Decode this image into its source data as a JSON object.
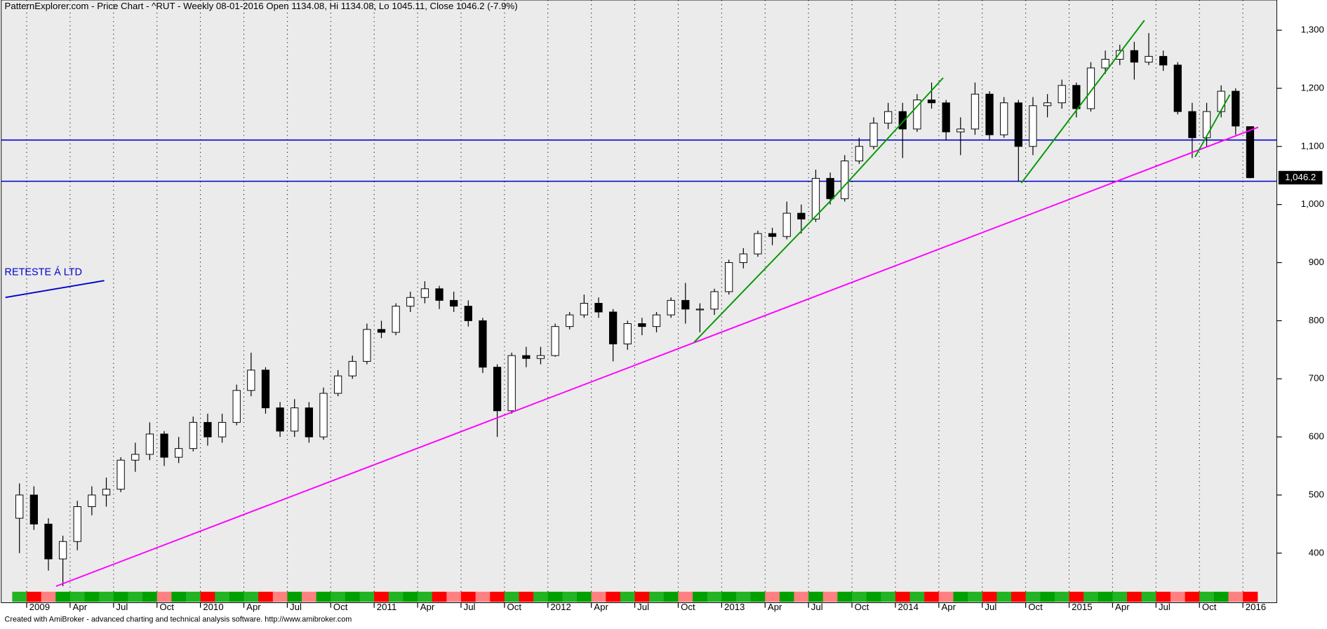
{
  "chart_data": {
    "type": "candlestick",
    "title": "PatternExplorer.com - Price Chart - ^RUT - Weekly 08-01-2016 Open 1134.08, Hi 1134.08, Lo 1045.11, Close 1046.2 (-7.9%)",
    "footer": "Created with AmiBroker - advanced charting and technical analysis software. http://www.amibroker.com",
    "annotation": "RETESTE Á LTD",
    "last_label": "1,046.2",
    "categories": [
      null,
      "2009",
      null,
      null,
      "Apr",
      null,
      null,
      "Jul",
      null,
      null,
      "Oct",
      null,
      null,
      "2010",
      null,
      null,
      "Apr",
      null,
      null,
      "Jul",
      null,
      null,
      "Oct",
      null,
      null,
      "2011",
      null,
      null,
      "Apr",
      null,
      null,
      "Jul",
      null,
      null,
      "Oct",
      null,
      null,
      "2012",
      null,
      null,
      "Apr",
      null,
      null,
      "Jul",
      null,
      null,
      "Oct",
      null,
      null,
      "2013",
      null,
      null,
      "Apr",
      null,
      null,
      "Jul",
      null,
      null,
      "Oct",
      null,
      null,
      "2014",
      null,
      null,
      "Apr",
      null,
      null,
      "Jul",
      null,
      null,
      "Oct",
      null,
      null,
      "2015",
      null,
      null,
      "Apr",
      null,
      null,
      "Jul",
      null,
      null,
      "Oct",
      null,
      null,
      "2016"
    ],
    "open": [
      460,
      500,
      450,
      390,
      420,
      480,
      500,
      510,
      560,
      570,
      605,
      565,
      580,
      625,
      600,
      625,
      680,
      715,
      650,
      610,
      650,
      600,
      675,
      705,
      730,
      785,
      780,
      825,
      840,
      855,
      835,
      825,
      800,
      720,
      645,
      740,
      735,
      740,
      790,
      810,
      830,
      815,
      760,
      795,
      790,
      810,
      835,
      820,
      820,
      850,
      900,
      915,
      950,
      945,
      985,
      975,
      1045,
      1010,
      1075,
      1100,
      1140,
      1160,
      1130,
      1180,
      1175,
      1125,
      1130,
      1190,
      1120,
      1175,
      1100,
      1170,
      1175,
      1205,
      1165,
      1235,
      1250,
      1265,
      1245,
      1255,
      1240,
      1160,
      1115,
      1160,
      1195,
      1134.08
    ],
    "high": [
      520,
      515,
      460,
      430,
      490,
      515,
      530,
      565,
      590,
      625,
      610,
      600,
      635,
      640,
      640,
      690,
      745,
      720,
      660,
      665,
      660,
      685,
      715,
      740,
      795,
      800,
      830,
      850,
      868,
      860,
      850,
      835,
      805,
      725,
      745,
      755,
      755,
      795,
      815,
      845,
      840,
      820,
      800,
      805,
      815,
      840,
      865,
      830,
      855,
      905,
      925,
      955,
      960,
      1005,
      1000,
      1060,
      1055,
      1085,
      1115,
      1150,
      1175,
      1175,
      1190,
      1210,
      1180,
      1150,
      1210,
      1195,
      1185,
      1180,
      1185,
      1190,
      1215,
      1210,
      1245,
      1265,
      1275,
      1280,
      1295,
      1265,
      1245,
      1175,
      1175,
      1205,
      1200,
      1134.08
    ],
    "low": [
      400,
      440,
      370,
      343,
      405,
      465,
      480,
      505,
      540,
      560,
      550,
      555,
      575,
      585,
      590,
      620,
      670,
      640,
      600,
      600,
      590,
      595,
      670,
      700,
      725,
      770,
      775,
      815,
      830,
      820,
      815,
      790,
      710,
      600,
      640,
      720,
      725,
      738,
      785,
      805,
      805,
      730,
      750,
      775,
      780,
      805,
      795,
      780,
      810,
      845,
      890,
      910,
      930,
      940,
      950,
      970,
      1000,
      1005,
      1070,
      1095,
      1130,
      1080,
      1125,
      1165,
      1110,
      1085,
      1120,
      1110,
      1115,
      1040,
      1085,
      1150,
      1165,
      1150,
      1160,
      1225,
      1240,
      1215,
      1240,
      1230,
      1155,
      1080,
      1100,
      1150,
      1120,
      1045.11
    ],
    "close": [
      500,
      450,
      390,
      420,
      480,
      500,
      510,
      560,
      570,
      605,
      565,
      580,
      625,
      600,
      625,
      680,
      715,
      650,
      610,
      650,
      600,
      675,
      705,
      730,
      785,
      780,
      825,
      840,
      855,
      835,
      825,
      800,
      720,
      645,
      740,
      735,
      740,
      790,
      810,
      830,
      815,
      760,
      795,
      790,
      810,
      835,
      820,
      820,
      850,
      900,
      915,
      950,
      945,
      985,
      975,
      1045,
      1010,
      1075,
      1100,
      1140,
      1160,
      1130,
      1180,
      1175,
      1125,
      1130,
      1190,
      1120,
      1175,
      1100,
      1170,
      1175,
      1205,
      1165,
      1235,
      1250,
      1265,
      1245,
      1255,
      1240,
      1160,
      1115,
      1160,
      1195,
      1135,
      1046.2
    ],
    "up_color": "#ffffff",
    "down_color": "#000000",
    "ylim": [
      335,
      1352
    ],
    "yticks": [
      400,
      500,
      600,
      700,
      800,
      900,
      {
        "value": 1000,
        "label": "1,000"
      },
      {
        "value": 1100,
        "label": "1,100"
      },
      {
        "value": 1200,
        "label": "1,200"
      },
      {
        "value": 1300,
        "label": "1,300"
      }
    ],
    "grid": "x",
    "hlines": [
      {
        "value": 1111,
        "color": "#0000cc"
      },
      {
        "value": 1040,
        "color": "#0000cc"
      }
    ],
    "trendlines": [
      {
        "from": [
          2.53,
          343
        ],
        "to": [
          85.56,
          1133
        ],
        "color": "#ff00ff"
      },
      {
        "from": [
          46.6,
          763
        ],
        "to": [
          56.2,
          1011
        ],
        "color": "#009900"
      },
      {
        "from": [
          56.2,
          1011
        ],
        "to": [
          63.8,
          1218
        ],
        "color": "#009900"
      },
      {
        "from": [
          69.2,
          1037
        ],
        "to": [
          77.7,
          1317
        ],
        "color": "#009900"
      },
      {
        "from": [
          81.2,
          1082
        ],
        "to": [
          83.6,
          1189
        ],
        "color": "#009900"
      },
      {
        "from": [
          -0.97,
          840
        ],
        "to": [
          5.86,
          869
        ],
        "color": "#0000cc"
      }
    ]
  }
}
